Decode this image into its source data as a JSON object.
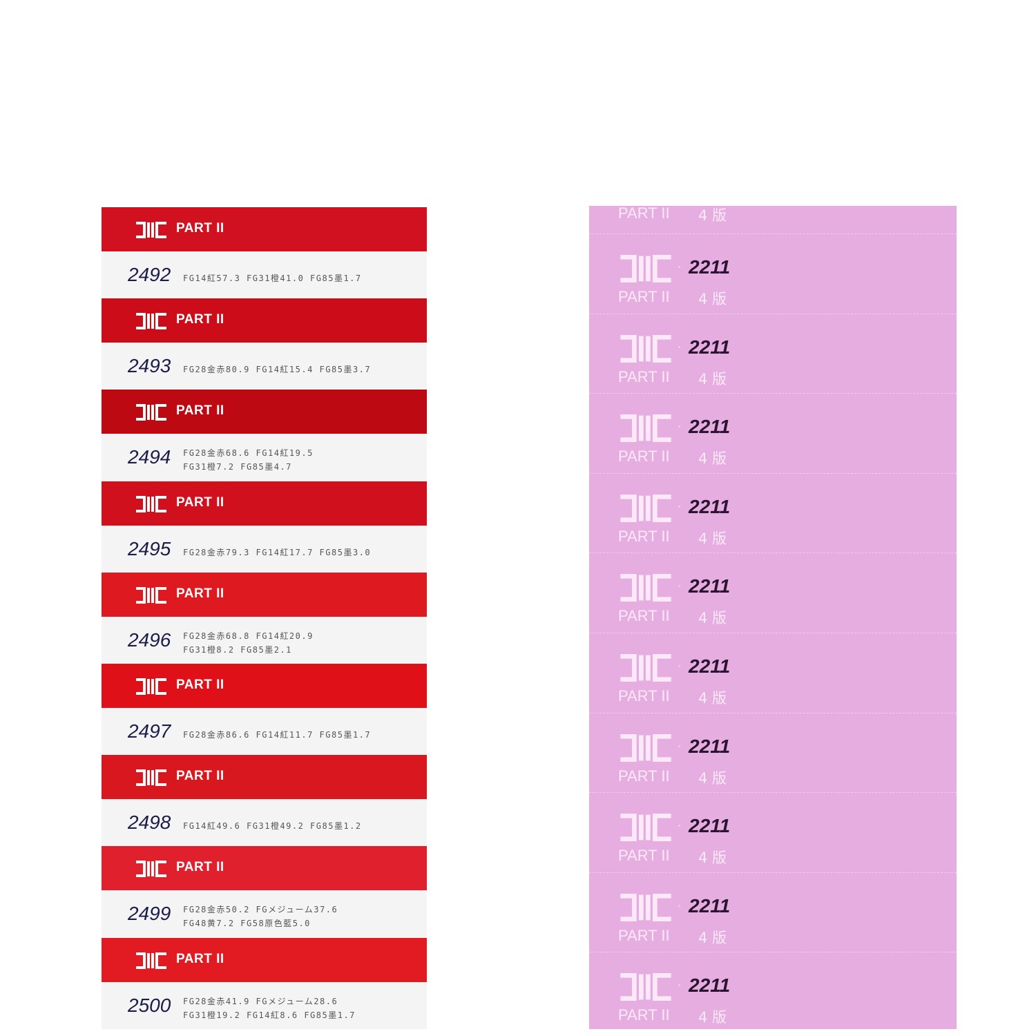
{
  "brand": {
    "logo_text": "DIC",
    "series": "PART II"
  },
  "left_swatches": [
    {
      "number": "2492",
      "color": "#d11020",
      "lines": [
        "FG14紅57.3  FG31橙41.0  FG85墨1.7"
      ]
    },
    {
      "number": "2493",
      "color": "#cc0c18",
      "lines": [
        "FG28金赤80.9  FG14紅15.4  FG85墨3.7"
      ]
    },
    {
      "number": "2494",
      "color": "#bd0a12",
      "lines": [
        "FG28金赤68.6  FG14紅19.5",
        "FG31橙7.2  FG85墨4.7"
      ]
    },
    {
      "number": "2495",
      "color": "#d0101c",
      "lines": [
        "FG28金赤79.3  FG14紅17.7  FG85墨3.0"
      ]
    },
    {
      "number": "2496",
      "color": "#de1a20",
      "lines": [
        "FG28金赤68.8  FG14紅20.9",
        "FG31橙8.2  FG85墨2.1"
      ]
    },
    {
      "number": "2497",
      "color": "#e01018",
      "lines": [
        "FG28金赤86.6  FG14紅11.7  FG85墨1.7"
      ]
    },
    {
      "number": "2498",
      "color": "#d8181e",
      "lines": [
        "FG14紅49.6  FG31橙49.2  FG85墨1.2"
      ]
    },
    {
      "number": "2499",
      "color": "#e0202c",
      "lines": [
        "FG28金赤50.2  FGメジューム37.6",
        "FG48黄7.2  FG58原色藍5.0"
      ]
    },
    {
      "number": "2500",
      "color": "#e21a22",
      "lines": [
        "FG28金赤41.9  FGメジューム28.6",
        "FG31橙19.2  FG14紅8.6  FG85墨1.7"
      ]
    }
  ],
  "right_swatch": {
    "color": "#e6aee0",
    "code": "2211",
    "separator": "·",
    "part": "PART II",
    "edition": "4 版",
    "strip_count": 10
  }
}
